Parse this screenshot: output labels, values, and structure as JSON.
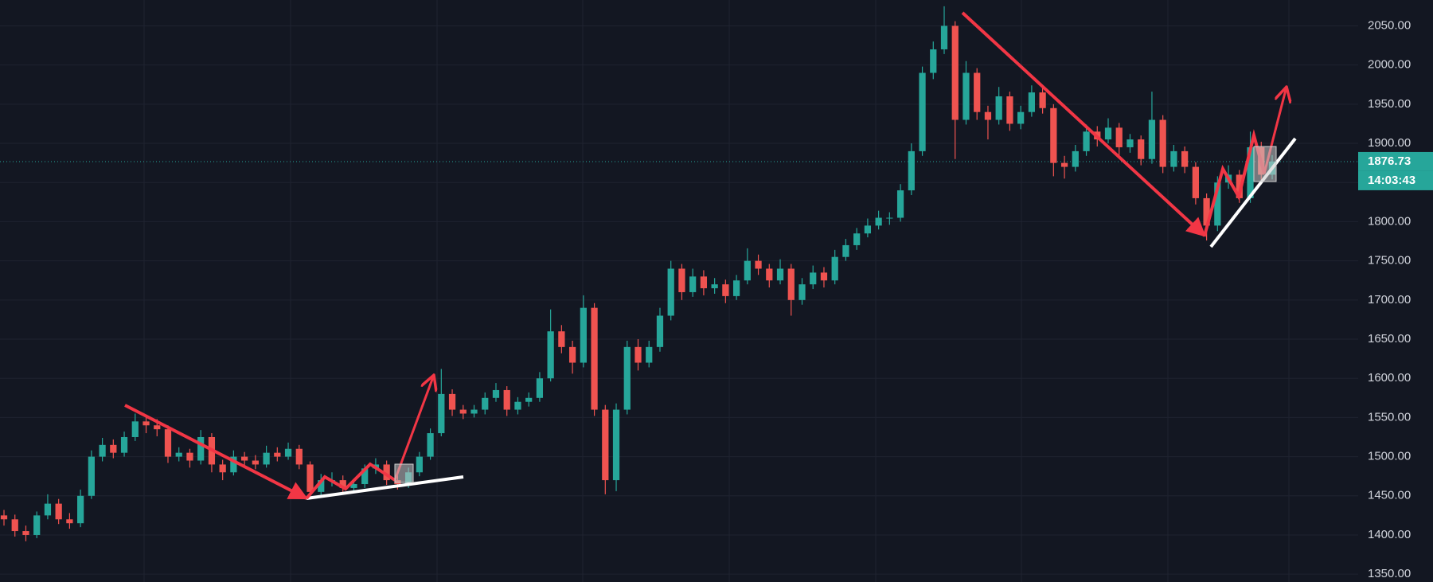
{
  "chart_data": {
    "type": "candlestick",
    "up_color": "#26a69a",
    "down_color": "#ef5350",
    "ylim": [
      1340,
      2083
    ],
    "yticks": [
      {
        "value": 1350,
        "label": "1350.00"
      },
      {
        "value": 1400,
        "label": "1400.00"
      },
      {
        "value": 1450,
        "label": "1450.00"
      },
      {
        "value": 1500,
        "label": "1500.00"
      },
      {
        "value": 1550,
        "label": "1550.00"
      },
      {
        "value": 1600,
        "label": "1600.00"
      },
      {
        "value": 1650,
        "label": "1650.00"
      },
      {
        "value": 1700,
        "label": "1700.00"
      },
      {
        "value": 1750,
        "label": "1750.00"
      },
      {
        "value": 1800,
        "label": "1800.00"
      },
      {
        "value": 1850,
        "label": "1850.00"
      },
      {
        "value": 1900,
        "label": "1900.00"
      },
      {
        "value": 1950,
        "label": "1950.00"
      },
      {
        "value": 2000,
        "label": "2000.00"
      },
      {
        "value": 2050,
        "label": "2050.00"
      }
    ],
    "grid": true,
    "last_price": 1876.73,
    "countdown": "14:03:43",
    "ohlc": [
      [
        1425,
        1432,
        1412,
        1420
      ],
      [
        1420,
        1426,
        1398,
        1405
      ],
      [
        1405,
        1412,
        1392,
        1400
      ],
      [
        1400,
        1430,
        1396,
        1425
      ],
      [
        1425,
        1452,
        1420,
        1440
      ],
      [
        1440,
        1446,
        1414,
        1420
      ],
      [
        1420,
        1428,
        1408,
        1415
      ],
      [
        1415,
        1458,
        1410,
        1450
      ],
      [
        1450,
        1508,
        1446,
        1500
      ],
      [
        1500,
        1524,
        1494,
        1515
      ],
      [
        1515,
        1522,
        1498,
        1505
      ],
      [
        1505,
        1532,
        1500,
        1525
      ],
      [
        1525,
        1555,
        1520,
        1545
      ],
      [
        1545,
        1552,
        1530,
        1540
      ],
      [
        1540,
        1548,
        1526,
        1535
      ],
      [
        1535,
        1540,
        1492,
        1500
      ],
      [
        1500,
        1512,
        1494,
        1505
      ],
      [
        1505,
        1510,
        1486,
        1495
      ],
      [
        1495,
        1534,
        1490,
        1525
      ],
      [
        1525,
        1530,
        1480,
        1490
      ],
      [
        1490,
        1496,
        1470,
        1480
      ],
      [
        1480,
        1508,
        1476,
        1500
      ],
      [
        1500,
        1506,
        1488,
        1495
      ],
      [
        1495,
        1502,
        1484,
        1490
      ],
      [
        1490,
        1514,
        1486,
        1505
      ],
      [
        1505,
        1512,
        1494,
        1500
      ],
      [
        1500,
        1518,
        1496,
        1510
      ],
      [
        1510,
        1515,
        1484,
        1490
      ],
      [
        1490,
        1494,
        1448,
        1455
      ],
      [
        1455,
        1478,
        1450,
        1470
      ],
      [
        1470,
        1480,
        1462,
        1470
      ],
      [
        1470,
        1476,
        1454,
        1460
      ],
      [
        1460,
        1472,
        1455,
        1465
      ],
      [
        1465,
        1490,
        1460,
        1485
      ],
      [
        1485,
        1498,
        1478,
        1490
      ],
      [
        1490,
        1495,
        1464,
        1470
      ],
      [
        1470,
        1476,
        1458,
        1465
      ],
      [
        1465,
        1486,
        1460,
        1480
      ],
      [
        1480,
        1506,
        1475,
        1500
      ],
      [
        1500,
        1536,
        1496,
        1530
      ],
      [
        1530,
        1612,
        1526,
        1580
      ],
      [
        1580,
        1586,
        1552,
        1560
      ],
      [
        1560,
        1566,
        1548,
        1555
      ],
      [
        1555,
        1566,
        1550,
        1560
      ],
      [
        1560,
        1582,
        1554,
        1575
      ],
      [
        1575,
        1594,
        1570,
        1585
      ],
      [
        1585,
        1590,
        1552,
        1560
      ],
      [
        1560,
        1576,
        1554,
        1570
      ],
      [
        1570,
        1582,
        1564,
        1575
      ],
      [
        1575,
        1608,
        1570,
        1600
      ],
      [
        1600,
        1688,
        1596,
        1660
      ],
      [
        1660,
        1668,
        1632,
        1640
      ],
      [
        1640,
        1648,
        1606,
        1620
      ],
      [
        1620,
        1706,
        1614,
        1690
      ],
      [
        1690,
        1696,
        1552,
        1560
      ],
      [
        1560,
        1566,
        1452,
        1470
      ],
      [
        1470,
        1568,
        1456,
        1560
      ],
      [
        1560,
        1648,
        1554,
        1640
      ],
      [
        1640,
        1650,
        1610,
        1620
      ],
      [
        1620,
        1648,
        1614,
        1640
      ],
      [
        1640,
        1690,
        1634,
        1680
      ],
      [
        1680,
        1750,
        1674,
        1740
      ],
      [
        1740,
        1746,
        1700,
        1710
      ],
      [
        1710,
        1740,
        1704,
        1730
      ],
      [
        1730,
        1738,
        1706,
        1715
      ],
      [
        1715,
        1728,
        1708,
        1720
      ],
      [
        1720,
        1726,
        1696,
        1705
      ],
      [
        1705,
        1732,
        1700,
        1725
      ],
      [
        1725,
        1766,
        1720,
        1750
      ],
      [
        1750,
        1758,
        1732,
        1740
      ],
      [
        1740,
        1746,
        1716,
        1725
      ],
      [
        1725,
        1752,
        1720,
        1740
      ],
      [
        1740,
        1746,
        1680,
        1700
      ],
      [
        1700,
        1728,
        1694,
        1720
      ],
      [
        1720,
        1744,
        1714,
        1735
      ],
      [
        1735,
        1742,
        1716,
        1725
      ],
      [
        1725,
        1764,
        1720,
        1755
      ],
      [
        1755,
        1778,
        1750,
        1770
      ],
      [
        1770,
        1792,
        1764,
        1785
      ],
      [
        1785,
        1804,
        1780,
        1795
      ],
      [
        1795,
        1814,
        1790,
        1805
      ],
      [
        1805,
        1812,
        1796,
        1805
      ],
      [
        1805,
        1848,
        1800,
        1840
      ],
      [
        1840,
        1900,
        1834,
        1890
      ],
      [
        1890,
        1998,
        1884,
        1990
      ],
      [
        1990,
        2030,
        1982,
        2020
      ],
      [
        2020,
        2075,
        2014,
        2050
      ],
      [
        2050,
        2056,
        1880,
        1930
      ],
      [
        1930,
        2005,
        1924,
        1990
      ],
      [
        1990,
        1996,
        1930,
        1940
      ],
      [
        1940,
        1948,
        1905,
        1930
      ],
      [
        1930,
        1972,
        1924,
        1960
      ],
      [
        1960,
        1966,
        1916,
        1925
      ],
      [
        1925,
        1948,
        1918,
        1940
      ],
      [
        1940,
        1974,
        1934,
        1965
      ],
      [
        1965,
        1972,
        1938,
        1945
      ],
      [
        1945,
        1950,
        1858,
        1875
      ],
      [
        1875,
        1884,
        1855,
        1870
      ],
      [
        1870,
        1898,
        1864,
        1890
      ],
      [
        1890,
        1924,
        1884,
        1915
      ],
      [
        1915,
        1922,
        1896,
        1905
      ],
      [
        1905,
        1932,
        1900,
        1920
      ],
      [
        1920,
        1926,
        1884,
        1895
      ],
      [
        1895,
        1912,
        1888,
        1905
      ],
      [
        1905,
        1910,
        1872,
        1880
      ],
      [
        1880,
        1966,
        1874,
        1930
      ],
      [
        1930,
        1936,
        1862,
        1870
      ],
      [
        1870,
        1898,
        1864,
        1890
      ],
      [
        1890,
        1896,
        1862,
        1870
      ],
      [
        1870,
        1876,
        1822,
        1830
      ],
      [
        1830,
        1836,
        1776,
        1795
      ],
      [
        1795,
        1858,
        1788,
        1850
      ],
      [
        1850,
        1872,
        1842,
        1860
      ],
      [
        1860,
        1866,
        1824,
        1830
      ],
      [
        1830,
        1915,
        1824,
        1895
      ],
      [
        1895,
        1902,
        1852,
        1860
      ],
      [
        1860,
        1885,
        1854,
        1876.73
      ]
    ]
  }
}
